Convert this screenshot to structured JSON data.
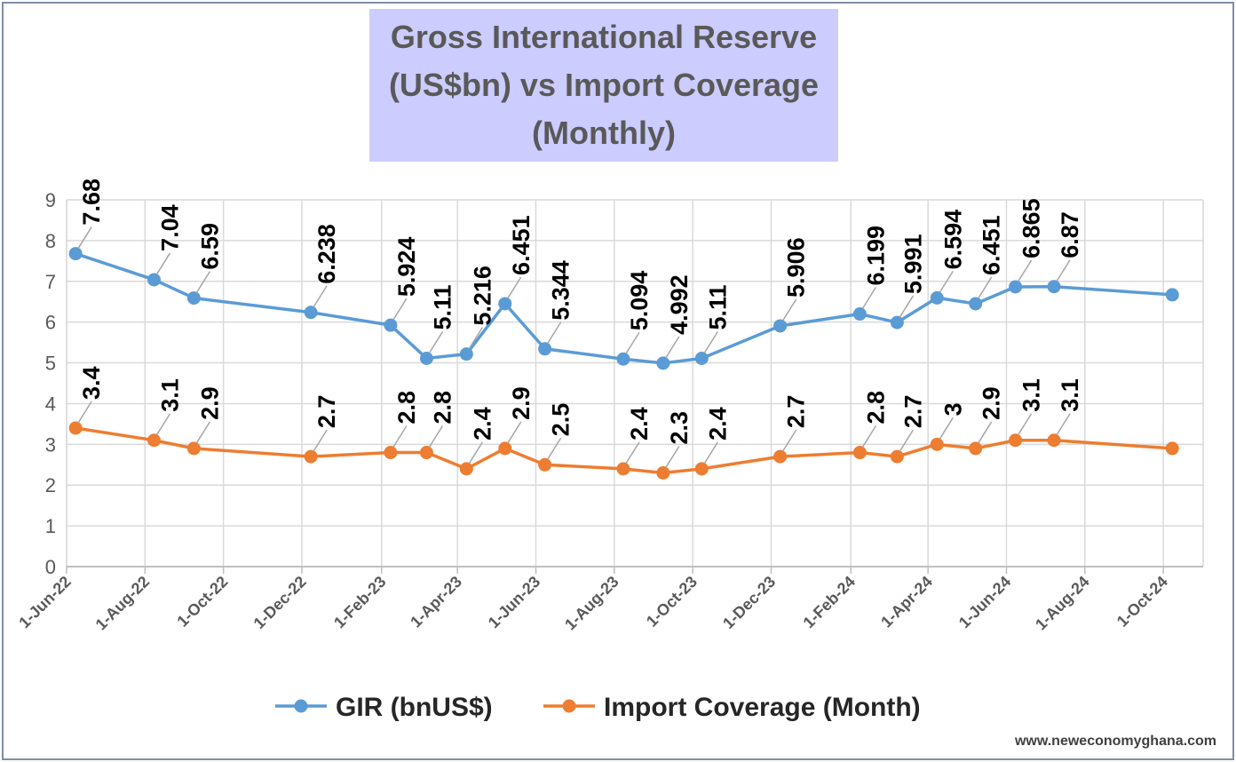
{
  "chart_data": {
    "type": "line",
    "title": "Gross International Reserve (US$bn) vs Import Coverage (Monthly)",
    "xlabel": "",
    "ylabel": "",
    "ylim": [
      0,
      9
    ],
    "yticks": [
      0,
      1,
      2,
      3,
      4,
      5,
      6,
      7,
      8,
      9
    ],
    "xlim": [
      "2022-06-01",
      "2024-11-01"
    ],
    "xtick_labels": [
      "1-Jun-22",
      "1-Aug-22",
      "1-Oct-22",
      "1-Dec-22",
      "1-Feb-23",
      "1-Apr-23",
      "1-Jun-23",
      "1-Aug-23",
      "1-Oct-23",
      "1-Dec-23",
      "1-Feb-24",
      "1-Apr-24",
      "1-Jun-24",
      "1-Aug-24",
      "1-Oct-24"
    ],
    "xtick_dates": [
      "2022-06-01",
      "2022-08-01",
      "2022-10-01",
      "2022-12-01",
      "2023-02-01",
      "2023-04-01",
      "2023-06-01",
      "2023-08-01",
      "2023-10-01",
      "2023-12-01",
      "2024-02-01",
      "2024-04-01",
      "2024-06-01",
      "2024-08-01",
      "2024-10-01"
    ],
    "x": [
      "2022-06-08",
      "2022-08-08",
      "2022-09-08",
      "2022-12-08",
      "2023-02-08",
      "2023-03-08",
      "2023-04-08",
      "2023-05-08",
      "2023-06-08",
      "2023-08-08",
      "2023-09-08",
      "2023-10-08",
      "2023-12-08",
      "2024-02-08",
      "2024-03-08",
      "2024-04-08",
      "2024-05-08",
      "2024-06-08",
      "2024-07-08",
      "2024-10-08"
    ],
    "series": [
      {
        "name": "GIR (bnUS$)",
        "color": "#5b9bd5",
        "values": [
          7.68,
          7.04,
          6.59,
          6.238,
          5.924,
          5.11,
          5.216,
          6.451,
          5.344,
          5.094,
          4.992,
          5.11,
          5.906,
          6.199,
          5.991,
          6.594,
          6.451,
          6.865,
          6.87,
          6.67
        ],
        "labels": [
          "7.68",
          "7.04",
          "6.59",
          "6.238",
          "5.924",
          "5.11",
          "5.216",
          "6.451",
          "5.344",
          "5.094",
          "4.992",
          "5.11",
          "5.906",
          "6.199",
          "5.991",
          "6.594",
          "6.451",
          "6.865",
          "6.87",
          null
        ]
      },
      {
        "name": "Import Coverage (Month)",
        "color": "#ed7d31",
        "values": [
          3.4,
          3.1,
          2.9,
          2.7,
          2.8,
          2.8,
          2.4,
          2.9,
          2.5,
          2.4,
          2.3,
          2.4,
          2.7,
          2.8,
          2.7,
          3.0,
          2.9,
          3.1,
          3.1,
          2.9
        ],
        "labels": [
          "3.4",
          "3.1",
          "2.9",
          "2.7",
          "2.8",
          "2.8",
          "2.4",
          "2.9",
          "2.5",
          "2.4",
          "2.3",
          "2.4",
          "2.7",
          "2.8",
          "2.7",
          "3",
          "2.9",
          "3.1",
          "3.1",
          null
        ]
      }
    ],
    "legend": "bottom-center",
    "grid": true
  },
  "watermark": "www.neweconomyghana.com"
}
